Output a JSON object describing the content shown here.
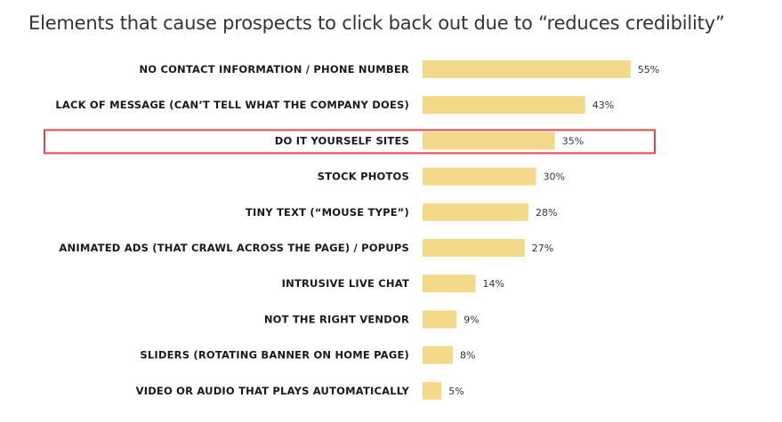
{
  "chart_data": {
    "type": "bar",
    "orientation": "horizontal",
    "title": "Elements that cause prospects to click back out due to “reduces credibility”",
    "categories": [
      "NO CONTACT INFORMATION / PHONE NUMBER",
      "LACK OF MESSAGE (CAN’T TELL WHAT THE COMPANY DOES)",
      "DO IT YOURSELF SITES",
      "STOCK PHOTOS",
      "TINY TEXT (“MOUSE TYPE”)",
      "ANIMATED ADS (THAT CRAWL ACROSS THE PAGE) / POPUPS",
      "INTRUSIVE LIVE CHAT",
      "NOT THE RIGHT VENDOR",
      "SLIDERS (ROTATING BANNER ON HOME PAGE)",
      "VIDEO OR AUDIO THAT PLAYS AUTOMATICALLY"
    ],
    "values": [
      55,
      43,
      35,
      30,
      28,
      27,
      14,
      9,
      8,
      5
    ],
    "value_labels": [
      "55%",
      "43%",
      "35%",
      "30%",
      "28%",
      "27%",
      "14%",
      "9%",
      "8%",
      "5%"
    ],
    "bar_color": "#f5d98b",
    "highlighted_category": "DO IT YOURSELF SITES",
    "highlight_color": "#e0474c",
    "grid": false,
    "legend": "none"
  }
}
